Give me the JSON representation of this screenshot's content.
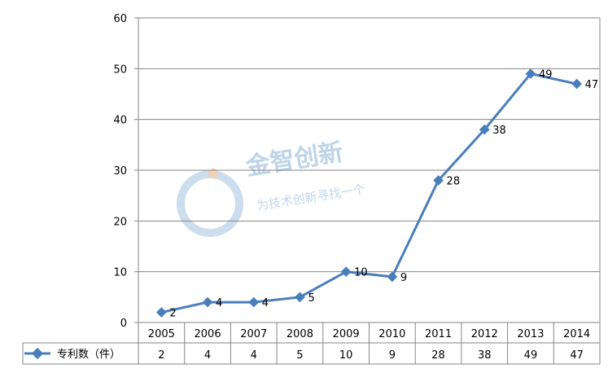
{
  "chart_data": {
    "type": "line",
    "categories": [
      "2005",
      "2006",
      "2007",
      "2008",
      "2009",
      "2010",
      "2011",
      "2012",
      "2013",
      "2014"
    ],
    "series": [
      {
        "name": "专利数（件）",
        "values": [
          2,
          4,
          4,
          5,
          10,
          9,
          28,
          38,
          49,
          47
        ]
      }
    ],
    "yticks": [
      "0",
      "10",
      "20",
      "30",
      "40",
      "50",
      "60"
    ],
    "ylim": [
      0,
      60
    ],
    "grid": true,
    "legend_position": "data-table-left",
    "series_color": "#4a7ebb",
    "axis_color": "#868686"
  },
  "watermark": {
    "title": "金智创新",
    "subtitle": "为技术创新寻找一个"
  }
}
